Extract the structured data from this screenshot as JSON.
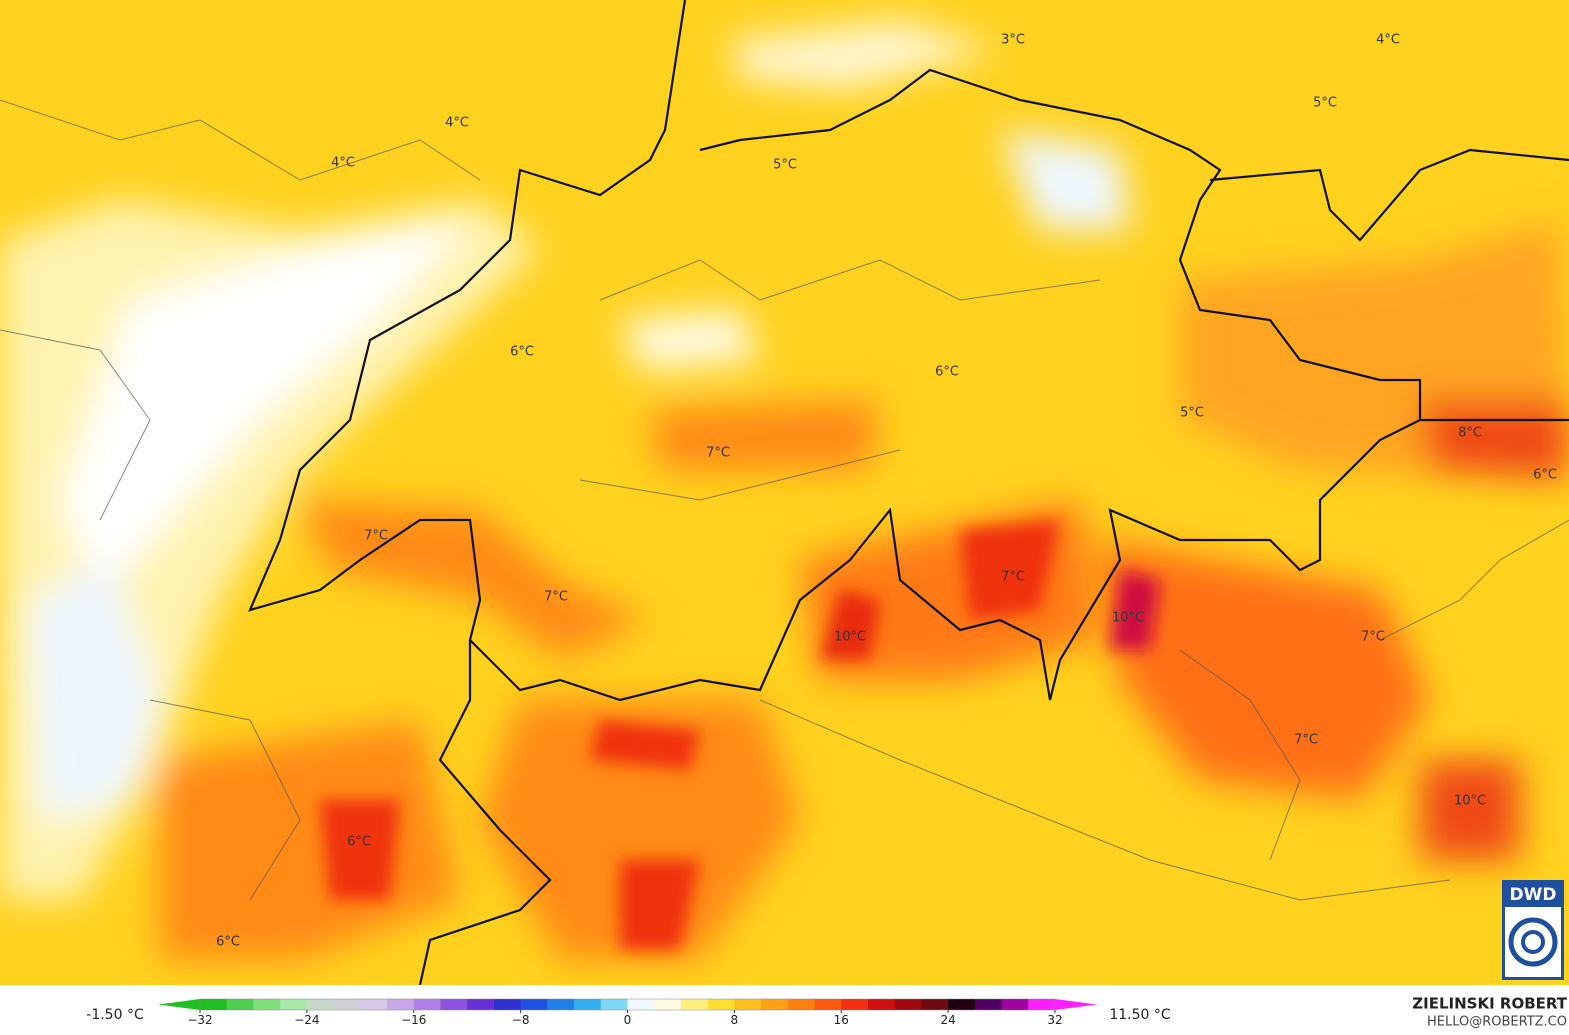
{
  "map": {
    "labels": [
      "3°C",
      "4°C",
      "5°C",
      "4°C",
      "4°C",
      "5°C",
      "6°C",
      "6°C",
      "5°C",
      "8°C",
      "6°C",
      "7°C",
      "7°C",
      "7°C",
      "7°C",
      "10°C",
      "10°C",
      "7°C",
      "7°C",
      "10°C",
      "6°C",
      "6°C"
    ],
    "logo": "DWD"
  },
  "legend": {
    "min_label": "-1.50 °C",
    "max_label": "11.50 °C",
    "range": [
      -32,
      32
    ],
    "ticks": [
      {
        "value": -32,
        "label": "−32"
      },
      {
        "value": -24,
        "label": "−24"
      },
      {
        "value": -16,
        "label": "−16"
      },
      {
        "value": -8,
        "label": "−8"
      },
      0,
      8,
      16,
      24,
      32
    ],
    "colors": [
      "#1fbf1f",
      "#4fcf4f",
      "#7fdf7f",
      "#a8e8a8",
      "#c8d8c8",
      "#d0d0d8",
      "#d8c8e8",
      "#c8a8e8",
      "#b080e8",
      "#9050e0",
      "#6a30d8",
      "#3030d0",
      "#2050e0",
      "#2080e8",
      "#30b0f0",
      "#80d8f8",
      "#f0f8ff",
      "#fffbe0",
      "#fff080",
      "#ffe030",
      "#ffc020",
      "#ffa018",
      "#ff8010",
      "#ff5a10",
      "#f03010",
      "#d01010",
      "#a00810",
      "#700810",
      "#200010",
      "#500060",
      "#a000a0",
      "#ff20ff"
    ]
  },
  "credits": {
    "author": "ZIELINSKI ROBERT",
    "contact": "HELLO@ROBERTZ.CO"
  }
}
